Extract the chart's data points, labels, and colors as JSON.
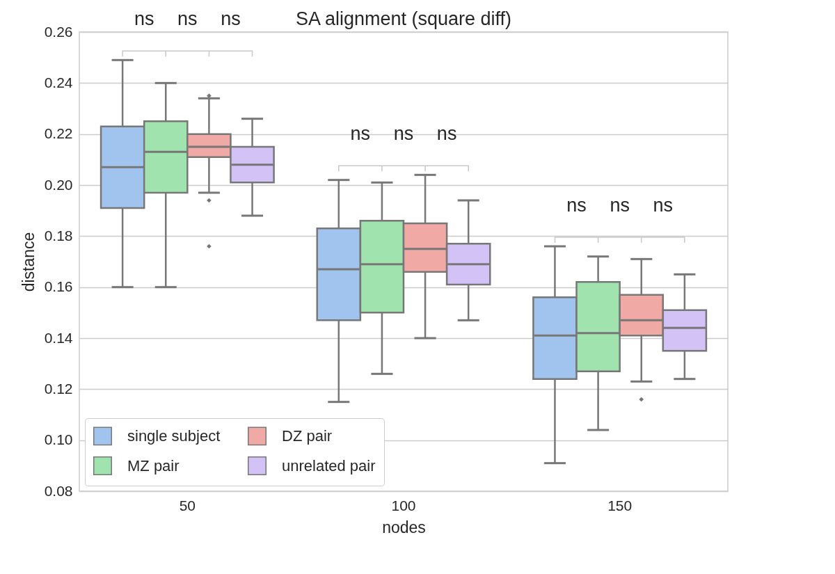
{
  "chart_data": {
    "type": "box",
    "title": "SA alignment (square diff)",
    "xlabel": "nodes",
    "ylabel": "distance",
    "categories": [
      "50",
      "100",
      "150"
    ],
    "series": [
      {
        "name": "single subject",
        "color": "#a1c4ef",
        "boxes": [
          {
            "low": 0.16,
            "q1": 0.191,
            "median": 0.207,
            "q3": 0.223,
            "high": 0.249
          },
          {
            "low": 0.115,
            "q1": 0.147,
            "median": 0.167,
            "q3": 0.183,
            "high": 0.202
          },
          {
            "low": 0.091,
            "q1": 0.124,
            "median": 0.141,
            "q3": 0.156,
            "high": 0.176
          }
        ]
      },
      {
        "name": "MZ pair",
        "color": "#a1e3ae",
        "boxes": [
          {
            "low": 0.16,
            "q1": 0.197,
            "median": 0.213,
            "q3": 0.225,
            "high": 0.24
          },
          {
            "low": 0.126,
            "q1": 0.15,
            "median": 0.169,
            "q3": 0.186,
            "high": 0.201
          },
          {
            "low": 0.104,
            "q1": 0.127,
            "median": 0.142,
            "q3": 0.162,
            "high": 0.172
          }
        ]
      },
      {
        "name": "DZ pair",
        "color": "#f0a9a5",
        "boxes": [
          {
            "low": 0.197,
            "q1": 0.211,
            "median": 0.215,
            "q3": 0.22,
            "high": 0.234,
            "outliers": [
              0.235,
              0.194,
              0.176
            ]
          },
          {
            "low": 0.14,
            "q1": 0.166,
            "median": 0.175,
            "q3": 0.185,
            "high": 0.204
          },
          {
            "low": 0.123,
            "q1": 0.141,
            "median": 0.147,
            "q3": 0.157,
            "high": 0.171,
            "outliers": [
              0.116
            ]
          }
        ]
      },
      {
        "name": "unrelated pair",
        "color": "#d3c2f6",
        "boxes": [
          {
            "low": 0.188,
            "q1": 0.201,
            "median": 0.208,
            "q3": 0.215,
            "high": 0.226
          },
          {
            "low": 0.147,
            "q1": 0.161,
            "median": 0.169,
            "q3": 0.177,
            "high": 0.194
          },
          {
            "low": 0.124,
            "q1": 0.135,
            "median": 0.144,
            "q3": 0.151,
            "high": 0.165
          }
        ]
      }
    ],
    "ylim": [
      0.08,
      0.26
    ],
    "yticks": [
      0.08,
      {
        "value": 0.1,
        "label": "0.10"
      },
      0.12,
      0.14,
      0.16,
      0.18,
      {
        "value": 0.2,
        "label": "0.20"
      },
      0.22,
      0.24,
      0.26
    ],
    "grid": "y",
    "legend": "bottom left",
    "marker": "diamond",
    "annotations": [
      "ns",
      "ns",
      "ns",
      "ns",
      "ns",
      "ns",
      "ns",
      "ns",
      "ns"
    ]
  }
}
